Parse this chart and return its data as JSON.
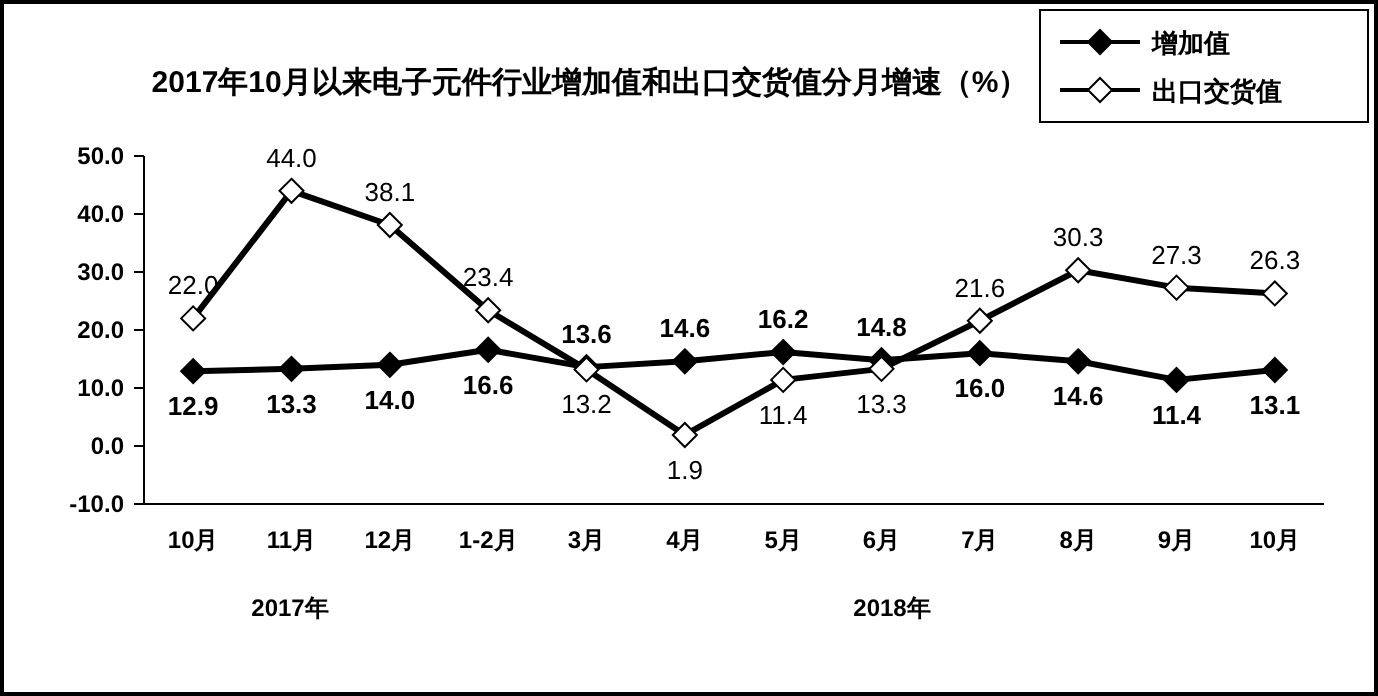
{
  "chart_data": {
    "type": "line",
    "title": "2017年10月以来电子元件行业增加值和出口交货值分月增速（%）",
    "categories": [
      "10月",
      "11月",
      "12月",
      "1-2月",
      "3月",
      "4月",
      "5月",
      "6月",
      "7月",
      "8月",
      "9月",
      "10月"
    ],
    "series": [
      {
        "name": "增加值",
        "color": "#000000",
        "values": [
          12.9,
          13.3,
          14.0,
          16.6,
          13.6,
          14.6,
          16.2,
          14.8,
          16.0,
          14.6,
          11.4,
          13.1
        ],
        "value_labels": [
          "12.9",
          "13.3",
          "14.0",
          "16.6",
          "13.6",
          "14.6",
          "16.2",
          "14.8",
          "16.0",
          "14.6",
          "11.4",
          "13.1"
        ]
      },
      {
        "name": "出口交货值",
        "color": "#000000",
        "values": [
          22.0,
          44.0,
          38.1,
          23.4,
          13.2,
          1.9,
          11.4,
          13.3,
          21.6,
          30.3,
          27.3,
          26.3
        ],
        "value_labels": [
          "22.0",
          "44.0",
          "38.1",
          "23.4",
          "13.2",
          "1.9",
          "11.4",
          "13.3",
          "21.6",
          "30.3",
          "27.3",
          "26.3"
        ]
      }
    ],
    "ylim": [
      -10,
      50
    ],
    "yticks": [
      {
        "value": -10,
        "label": "-10.0"
      },
      {
        "value": 0,
        "label": "0.0"
      },
      {
        "value": 10,
        "label": "10.0"
      },
      {
        "value": 20,
        "label": "20.0"
      },
      {
        "value": 30,
        "label": "30.0"
      },
      {
        "value": 40,
        "label": "40.0"
      },
      {
        "value": 50,
        "label": "50.0"
      }
    ],
    "annotations": [
      "2017年",
      "2018年"
    ],
    "legend": "top right",
    "marker": "diamond",
    "grid": false
  }
}
